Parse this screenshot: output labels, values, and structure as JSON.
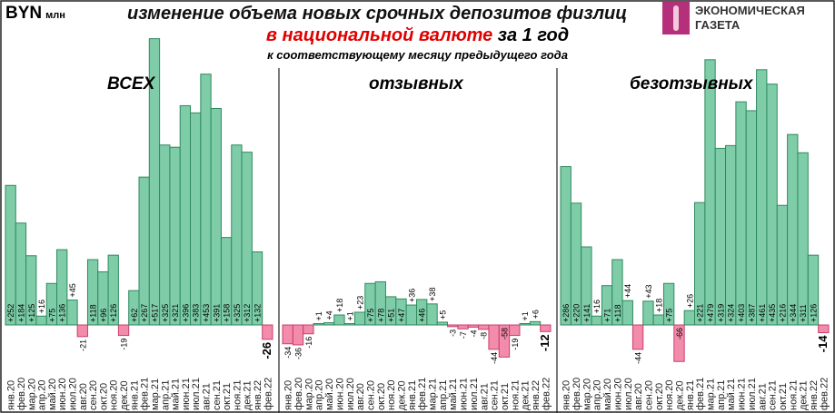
{
  "header": {
    "currency": "BYN",
    "unit": "млн",
    "title_line1": "изменение объема новых срочных депозитов физлиц",
    "title_line2_red": "в национальной валюте",
    "title_line2_rest": "за 1 год",
    "title_line3": "к соответствующему месяцу предыдущего года"
  },
  "logo": {
    "line1": "ЭКОНОМИЧЕСКАЯ",
    "line2": "ГАЗЕТА",
    "color": "#b5307a"
  },
  "colors": {
    "positive_fill": "#7fcca8",
    "positive_stroke": "#2f8a5e",
    "negative_fill": "#f38bab",
    "negative_stroke": "#c8406e"
  },
  "chart_data": [
    {
      "type": "bar",
      "title": "ВСЕХ",
      "categories": [
        "янв.20",
        "фев.20",
        "мар.20",
        "апр.20",
        "май.20",
        "июн.20",
        "июл.20",
        "авг.20",
        "сен.20",
        "окт.20",
        "ноя.20",
        "дек.20",
        "янв.21",
        "фев.21",
        "мар.21",
        "апр.21",
        "май.21",
        "июн.21",
        "июл.21",
        "авг.21",
        "сен.21",
        "окт.21",
        "ноя.21",
        "дек.21",
        "янв.22",
        "фев.22"
      ],
      "values": [
        252,
        184,
        125,
        16,
        75,
        136,
        45,
        -21,
        118,
        96,
        126,
        -19,
        62,
        267,
        517,
        325,
        321,
        396,
        383,
        453,
        391,
        158,
        325,
        312,
        132,
        -26
      ]
    },
    {
      "type": "bar",
      "title": "отзывных",
      "categories": [
        "янв.20",
        "фев.20",
        "мар.20",
        "апр.20",
        "май.20",
        "июн.20",
        "июл.20",
        "авг.20",
        "сен.20",
        "окт.20",
        "ноя.20",
        "дек.20",
        "янв.21",
        "фев.21",
        "мар.21",
        "апр.21",
        "май.21",
        "июн.21",
        "июл.21",
        "авг.21",
        "сен.21",
        "окт.21",
        "ноя.21",
        "дек.21",
        "янв.22",
        "фев.22"
      ],
      "values": [
        -34,
        -36,
        -16,
        1,
        4,
        18,
        1,
        23,
        75,
        78,
        51,
        47,
        36,
        46,
        38,
        5,
        -3,
        -7,
        -4,
        -8,
        -44,
        -58,
        -19,
        1,
        6,
        -12
      ]
    },
    {
      "type": "bar",
      "title": "безотзывных",
      "categories": [
        "янв.20",
        "фев.20",
        "мар.20",
        "апр.20",
        "май.20",
        "июн.20",
        "июл.20",
        "авг.20",
        "сен.20",
        "окт.20",
        "ноя.20",
        "дек.20",
        "янв.21",
        "фев.21",
        "мар.21",
        "апр.21",
        "май.21",
        "июн.21",
        "июл.21",
        "авг.21",
        "сен.21",
        "окт.21",
        "ноя.21",
        "дек.21",
        "янв.22",
        "фев.22"
      ],
      "values": [
        286,
        220,
        141,
        16,
        71,
        118,
        44,
        -44,
        43,
        18,
        75,
        -66,
        26,
        221,
        479,
        319,
        324,
        403,
        387,
        461,
        435,
        216,
        344,
        311,
        126,
        -14
      ]
    }
  ]
}
